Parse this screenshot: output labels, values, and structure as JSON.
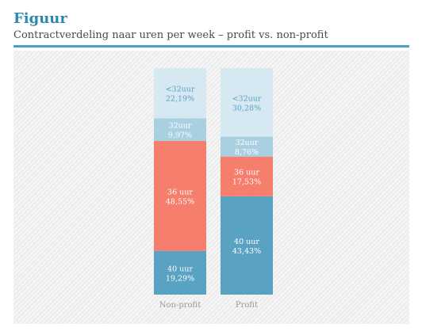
{
  "header": {
    "title": "Figuur",
    "subtitle": "Contractverdeling naar uren per week – profit vs. non-profit"
  },
  "chart_data": {
    "type": "bar",
    "stacked": true,
    "orientation": "vertical",
    "ylim": [
      0,
      100
    ],
    "grid": false,
    "categories": [
      "Non-profit",
      "Profit"
    ],
    "series": [
      {
        "name": "40 uur",
        "values": [
          19.29,
          43.43
        ],
        "labels": [
          "19,29%",
          "43,43%"
        ],
        "color": "#5aa2c2",
        "text_color": "#ffffff"
      },
      {
        "name": "36 uur",
        "values": [
          48.55,
          17.53
        ],
        "labels": [
          "48,55%",
          "17,53%"
        ],
        "color": "#f67e6c",
        "text_color": "#ffffff"
      },
      {
        "name": "32uur",
        "values": [
          9.97,
          8.76
        ],
        "labels": [
          "9,97%",
          "8,76%"
        ],
        "color": "#a8d0e1",
        "text_color": "#ffffff"
      },
      {
        "name": "<32uur",
        "values": [
          22.19,
          30.28
        ],
        "labels": [
          "22,19%",
          "30,28%"
        ],
        "color": "#d6e9f2",
        "text_color": "#5a9fc0"
      }
    ]
  }
}
